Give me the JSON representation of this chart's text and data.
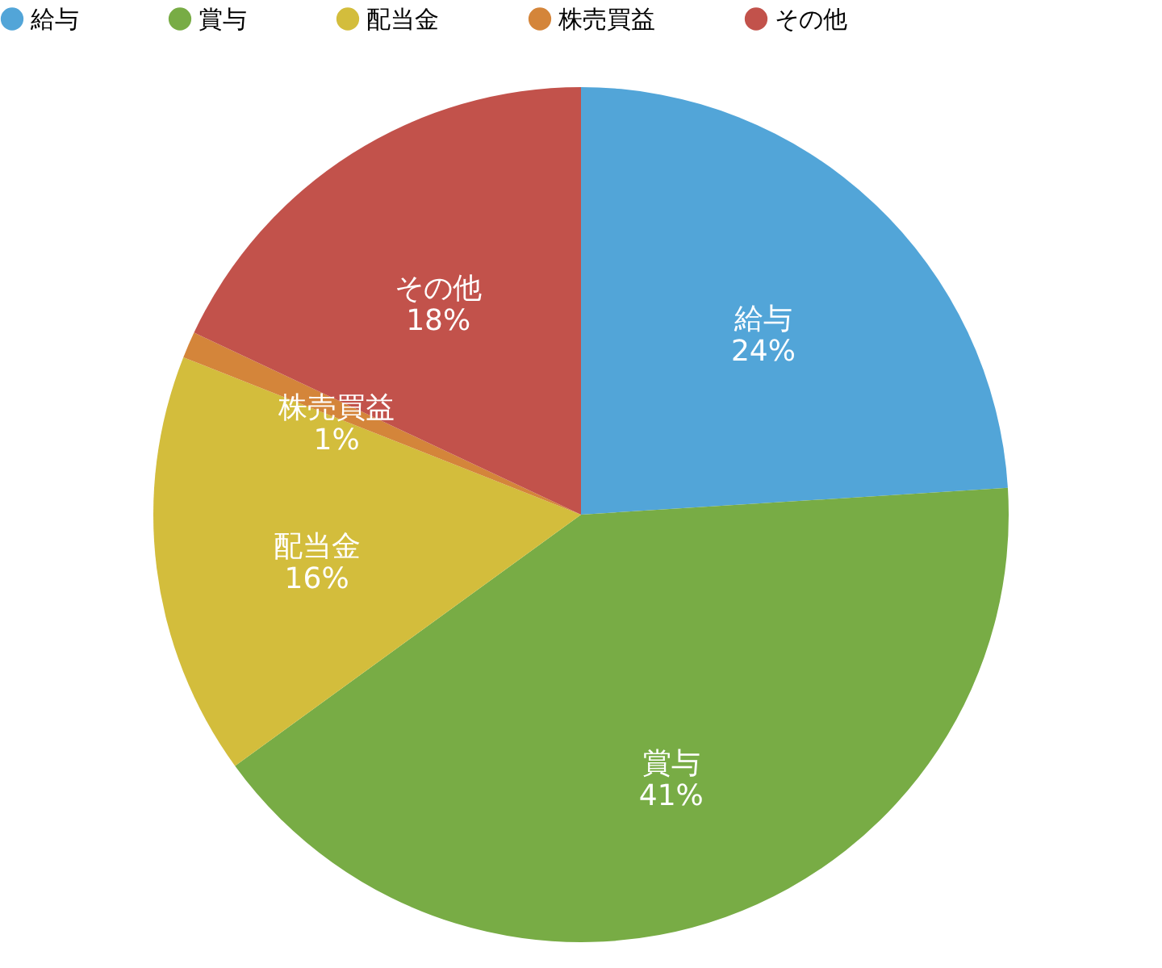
{
  "chart_data": {
    "type": "pie",
    "categories": [
      "給与",
      "賞与",
      "配当金",
      "株売買益",
      "その他"
    ],
    "values": [
      24,
      41,
      16,
      1,
      18
    ],
    "colors": [
      "#52a5d8",
      "#78ac45",
      "#d3bd3c",
      "#d4853a",
      "#c2524b"
    ],
    "value_labels": [
      "24%",
      "41%",
      "16%",
      "1%",
      "18%"
    ],
    "legend": "top"
  }
}
